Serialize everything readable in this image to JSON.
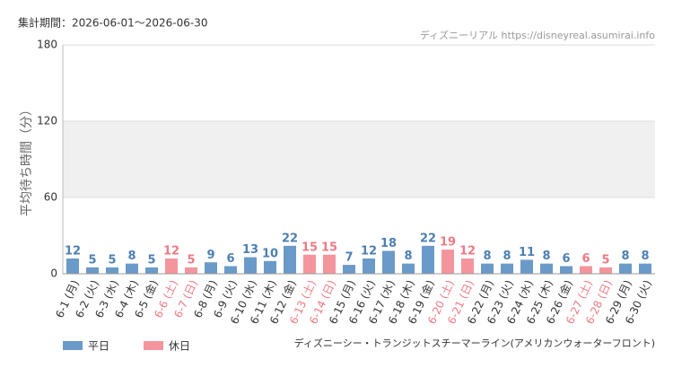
{
  "chart_data": {
    "type": "bar",
    "period": "集計期間：2026-06-01～2026-06-30",
    "source": "ディズニーリアル https://disneyreal.asumirai.info",
    "y_label": "平均待ち時間（分）",
    "attraction": "ディズニーシー・トランジットスチーマーライン(アメリカンウォーターフロント)",
    "categories": [
      "6-1 (月)",
      "6-2 (火)",
      "6-3 (水)",
      "6-4 (木)",
      "6-5 (金)",
      "6-6 (土)",
      "6-7 (日)",
      "6-8 (月)",
      "6-9 (火)",
      "6-10 (水)",
      "6-11 (木)",
      "6-12 (金)",
      "6-13 (土)",
      "6-14 (日)",
      "6-15 (月)",
      "6-16 (火)",
      "6-17 (水)",
      "6-18 (木)",
      "6-19 (金)",
      "6-20 (土)",
      "6-21 (日)",
      "6-22 (月)",
      "6-23 (火)",
      "6-24 (水)",
      "6-25 (木)",
      "6-26 (金)",
      "6-27 (土)",
      "6-28 (日)",
      "6-29 (月)",
      "6-30 (火)"
    ],
    "series": [
      {
        "name": "平日",
        "color": "#6a9ac8",
        "label_color": "#4d7fb3",
        "values": [
          12,
          5,
          5,
          8,
          5,
          null,
          null,
          9,
          6,
          13,
          10,
          22,
          null,
          null,
          7,
          12,
          18,
          8,
          22,
          null,
          null,
          8,
          8,
          11,
          8,
          6,
          null,
          null,
          8,
          8
        ]
      },
      {
        "name": "休日",
        "color": "#f4959d",
        "label_color": "#ee7a84",
        "values": [
          null,
          null,
          null,
          null,
          null,
          12,
          5,
          null,
          null,
          null,
          null,
          null,
          15,
          15,
          null,
          null,
          null,
          null,
          null,
          19,
          12,
          null,
          null,
          null,
          null,
          null,
          6,
          5,
          null,
          null
        ]
      }
    ],
    "ylim": [
      0,
      180
    ],
    "yticks": [
      0,
      60,
      120,
      180
    ],
    "grid": true
  }
}
